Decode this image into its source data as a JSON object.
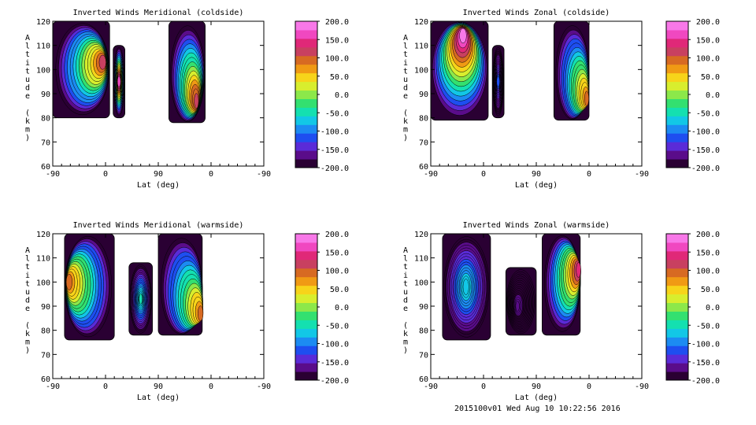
{
  "footer": "2015100v01 Wed Aug 10 10:22:56 2016",
  "colorbar": {
    "labels": [
      "200.0",
      "150.0",
      "100.0",
      "50.0",
      "0.0",
      "-50.0",
      "-100.0",
      "-150.0",
      "-200.0"
    ],
    "colors": [
      "#2a0033",
      "#5a0c8a",
      "#5a2bd8",
      "#1e4ef0",
      "#1c8bf2",
      "#12c7e6",
      "#14e0b0",
      "#33e070",
      "#8ce84a",
      "#d8ee2e",
      "#f7d41a",
      "#f09a14",
      "#d76a22",
      "#c84060",
      "#e02878",
      "#f048c0",
      "#f878e8"
    ],
    "levels": [
      -200,
      -150,
      -100,
      -50,
      0,
      50,
      100,
      150,
      200
    ]
  },
  "chart_data": [
    {
      "type": "contour",
      "title": "Inverted Winds Meridional (coldside)",
      "xlabel": "Lat (deg)",
      "ylabel": "Altitude (km)",
      "xticks": [
        "-90",
        "0",
        "90",
        "0",
        "-90"
      ],
      "yticks": [
        "60",
        "70",
        "80",
        "90",
        "100",
        "110",
        "120"
      ],
      "ylim": [
        60,
        120
      ],
      "colorbar_range": [
        -200,
        200
      ],
      "regions": [
        {
          "lat_range": [
            -90,
            7
          ],
          "alt_range": [
            80,
            120
          ],
          "peak": 110,
          "peak_lat": -5,
          "peak_alt": 103
        },
        {
          "lat_range": [
            13,
            33
          ],
          "alt_range": [
            80,
            110
          ],
          "peak": 170,
          "peak_lat": 23,
          "peak_alt": 95
        },
        {
          "lat_range": [
            108,
            170
          ],
          "alt_range": [
            78,
            120
          ],
          "peak": 125,
          "peak_lat": 155,
          "peak_alt": 87
        }
      ]
    },
    {
      "type": "contour",
      "title": "Inverted Winds Zonal (coldside)",
      "xlabel": "Lat (deg)",
      "ylabel": "Altitude (km)",
      "xticks": [
        "-90",
        "0",
        "90",
        "0",
        "-90"
      ],
      "yticks": [
        "60",
        "70",
        "80",
        "90",
        "100",
        "110",
        "120"
      ],
      "ylim": [
        60,
        120
      ],
      "colorbar_range": [
        -200,
        200
      ],
      "regions": [
        {
          "lat_range": [
            -90,
            8
          ],
          "alt_range": [
            79,
            120
          ],
          "peak": 190,
          "peak_lat": -35,
          "peak_alt": 114
        },
        {
          "lat_range": [
            15,
            35
          ],
          "alt_range": [
            80,
            110
          ],
          "peak": -120,
          "peak_lat": 25,
          "peak_alt": 95
        },
        {
          "lat_range": [
            120,
            180
          ],
          "alt_range": [
            79,
            120
          ],
          "peak": 95,
          "peak_lat": 176,
          "peak_alt": 88
        }
      ]
    },
    {
      "type": "contour",
      "title": "Inverted Winds Meridional (warmside)",
      "xlabel": "Lat (deg)",
      "ylabel": "Altitude (km)",
      "xticks": [
        "-90",
        "0",
        "90",
        "0",
        "-90"
      ],
      "yticks": [
        "60",
        "70",
        "80",
        "90",
        "100",
        "110",
        "120"
      ],
      "ylim": [
        60,
        120
      ],
      "colorbar_range": [
        -200,
        200
      ],
      "regions": [
        {
          "lat_range": [
            -70,
            15
          ],
          "alt_range": [
            76,
            120
          ],
          "peak": 95,
          "peak_lat": -62,
          "peak_alt": 100
        },
        {
          "lat_range": [
            40,
            80
          ],
          "alt_range": [
            78,
            108
          ],
          "peak": -50,
          "peak_lat": 60,
          "peak_alt": 93
        },
        {
          "lat_range": [
            90,
            165
          ],
          "alt_range": [
            78,
            120
          ],
          "peak": 90,
          "peak_lat": 162,
          "peak_alt": 87
        }
      ]
    },
    {
      "type": "contour",
      "title": "Inverted Winds Zonal (warmside)",
      "xlabel": "Lat (deg)",
      "ylabel": "Altitude (km)",
      "xticks": [
        "-90",
        "0",
        "90",
        "0",
        "-90"
      ],
      "yticks": [
        "60",
        "70",
        "80",
        "90",
        "100",
        "110",
        "120"
      ],
      "ylim": [
        60,
        120
      ],
      "colorbar_range": [
        -200,
        200
      ],
      "regions": [
        {
          "lat_range": [
            -70,
            12
          ],
          "alt_range": [
            76,
            120
          ],
          "peak": -60,
          "peak_lat": -30,
          "peak_alt": 98
        },
        {
          "lat_range": [
            38,
            90
          ],
          "alt_range": [
            78,
            106
          ],
          "peak": -170,
          "peak_lat": 58,
          "peak_alt": 90
        },
        {
          "lat_range": [
            100,
            165
          ],
          "alt_range": [
            78,
            120
          ],
          "peak": 130,
          "peak_lat": 162,
          "peak_alt": 105
        }
      ]
    }
  ]
}
